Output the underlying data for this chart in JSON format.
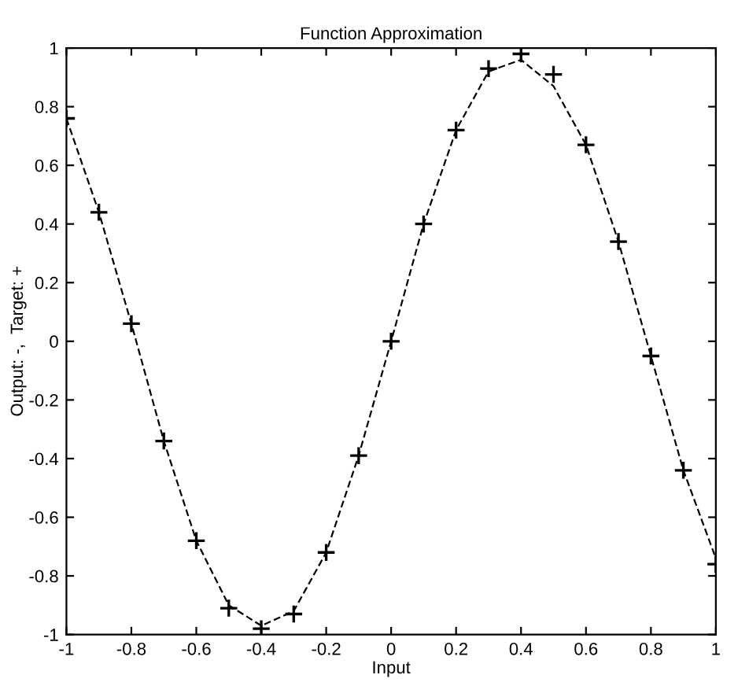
{
  "chart_data": {
    "type": "line",
    "title": "Function Approximation",
    "xlabel": "Input",
    "ylabel": "Output: -,  Target: +",
    "x": [
      -1,
      -0.9,
      -0.8,
      -0.7,
      -0.6,
      -0.5,
      -0.4,
      -0.3,
      -0.2,
      -0.1,
      0,
      0.1,
      0.2,
      0.3,
      0.4,
      0.5,
      0.6,
      0.7,
      0.8,
      0.9,
      1
    ],
    "series": [
      {
        "color": "#000000",
        "line_style": "dashed",
        "marker": "none",
        "values": [
          0.76,
          0.44,
          0.06,
          -0.34,
          -0.68,
          -0.9,
          -0.97,
          -0.92,
          -0.72,
          -0.39,
          0.0,
          0.4,
          0.72,
          0.92,
          0.96,
          0.87,
          0.67,
          0.34,
          -0.05,
          -0.44,
          -0.74
        ]
      },
      {
        "type": "scatter",
        "color": "#000000",
        "marker": "cross",
        "values": [
          0.76,
          0.44,
          0.06,
          -0.34,
          -0.68,
          -0.91,
          -0.98,
          -0.93,
          -0.72,
          -0.39,
          0.0,
          0.4,
          0.72,
          0.93,
          0.98,
          0.91,
          0.67,
          0.34,
          -0.05,
          -0.44,
          -0.76
        ]
      }
    ],
    "xlim": [
      -1,
      1
    ],
    "ylim": [
      -1,
      1
    ],
    "xticks": [
      -1,
      -0.8,
      -0.6,
      -0.4,
      -0.2,
      0,
      0.2,
      0.4,
      0.6,
      0.8,
      1
    ],
    "yticks": [
      -1,
      -0.8,
      -0.6,
      -0.4,
      -0.2,
      0,
      0.2,
      0.4,
      0.6,
      0.8,
      1
    ],
    "grid": false,
    "legend": false
  }
}
